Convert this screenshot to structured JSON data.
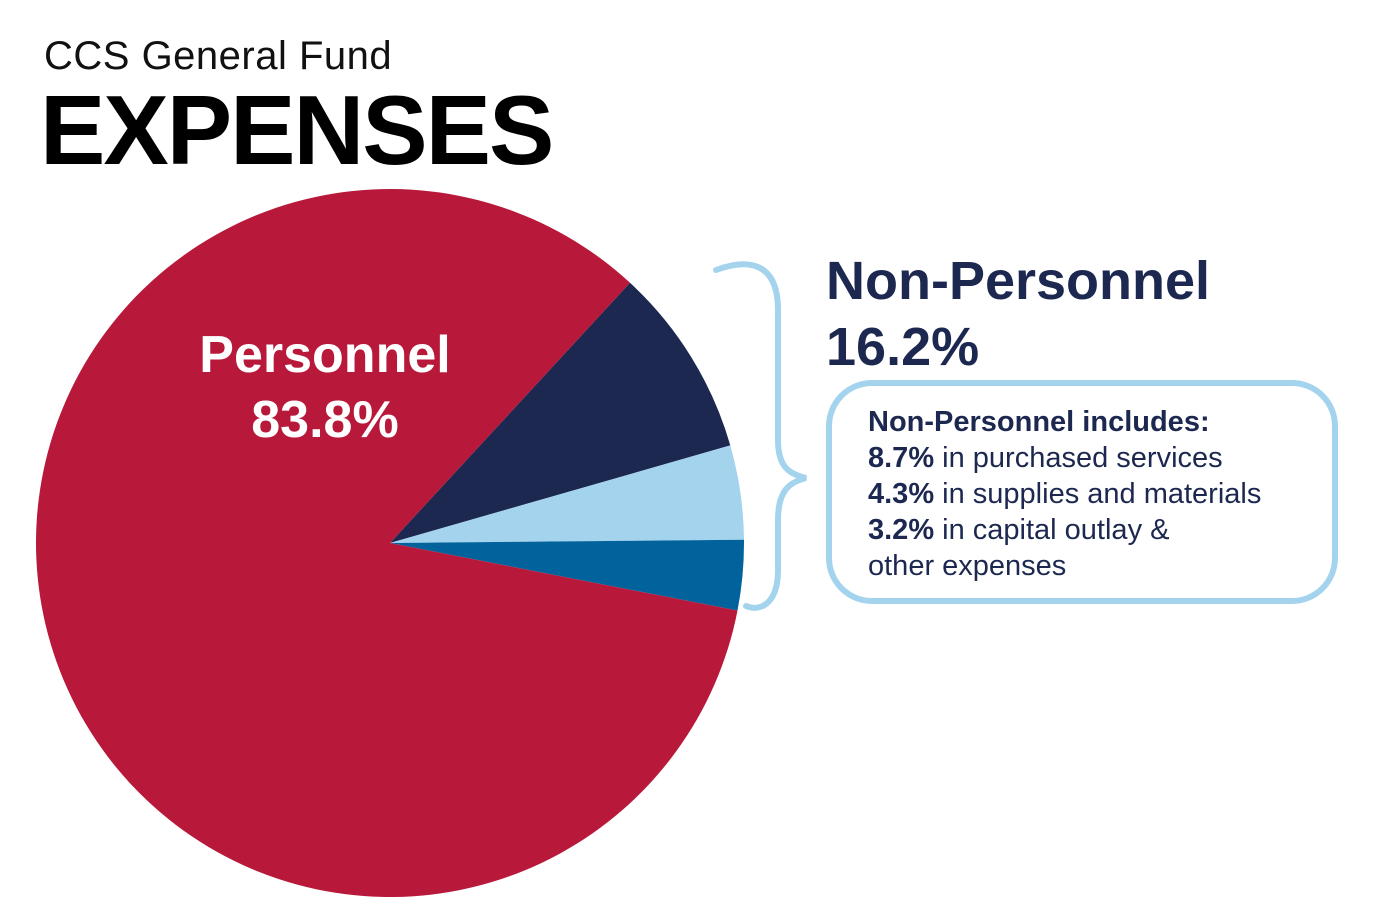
{
  "header": {
    "subtitle": "CCS General Fund",
    "title": "EXPENSES"
  },
  "chart_data": {
    "type": "pie",
    "title": "EXPENSES",
    "subtitle": "CCS General Fund",
    "slices": [
      {
        "label": "Personnel",
        "value": 83.8,
        "value_label": "83.8%",
        "color": "#b8183a"
      },
      {
        "label": "Purchased services",
        "value": 8.7,
        "value_label": "8.7%",
        "color": "#1c2850"
      },
      {
        "label": "Supplies and materials",
        "value": 4.3,
        "value_label": "4.3%",
        "color": "#a4d3ee"
      },
      {
        "label": "Capital outlay & other expenses",
        "value": 3.2,
        "value_label": "3.2%",
        "color": "#01629c"
      }
    ],
    "group": {
      "label": "Non-Personnel",
      "value": 16.2,
      "value_label": "16.2%"
    }
  },
  "non_personnel": {
    "heading": "Non-Personnel",
    "percent": "16.2%",
    "includes_title": "Non-Personnel includes:",
    "items": [
      {
        "pct": "8.7%",
        "text": " in purchased services"
      },
      {
        "pct": "4.3%",
        "text": " in supplies and materials"
      },
      {
        "pct": "3.2%",
        "text": " in capital outlay &"
      }
    ],
    "continuation": "other expenses"
  },
  "colors": {
    "brace": "#a4d3ee",
    "heading_text": "#1c2850"
  }
}
